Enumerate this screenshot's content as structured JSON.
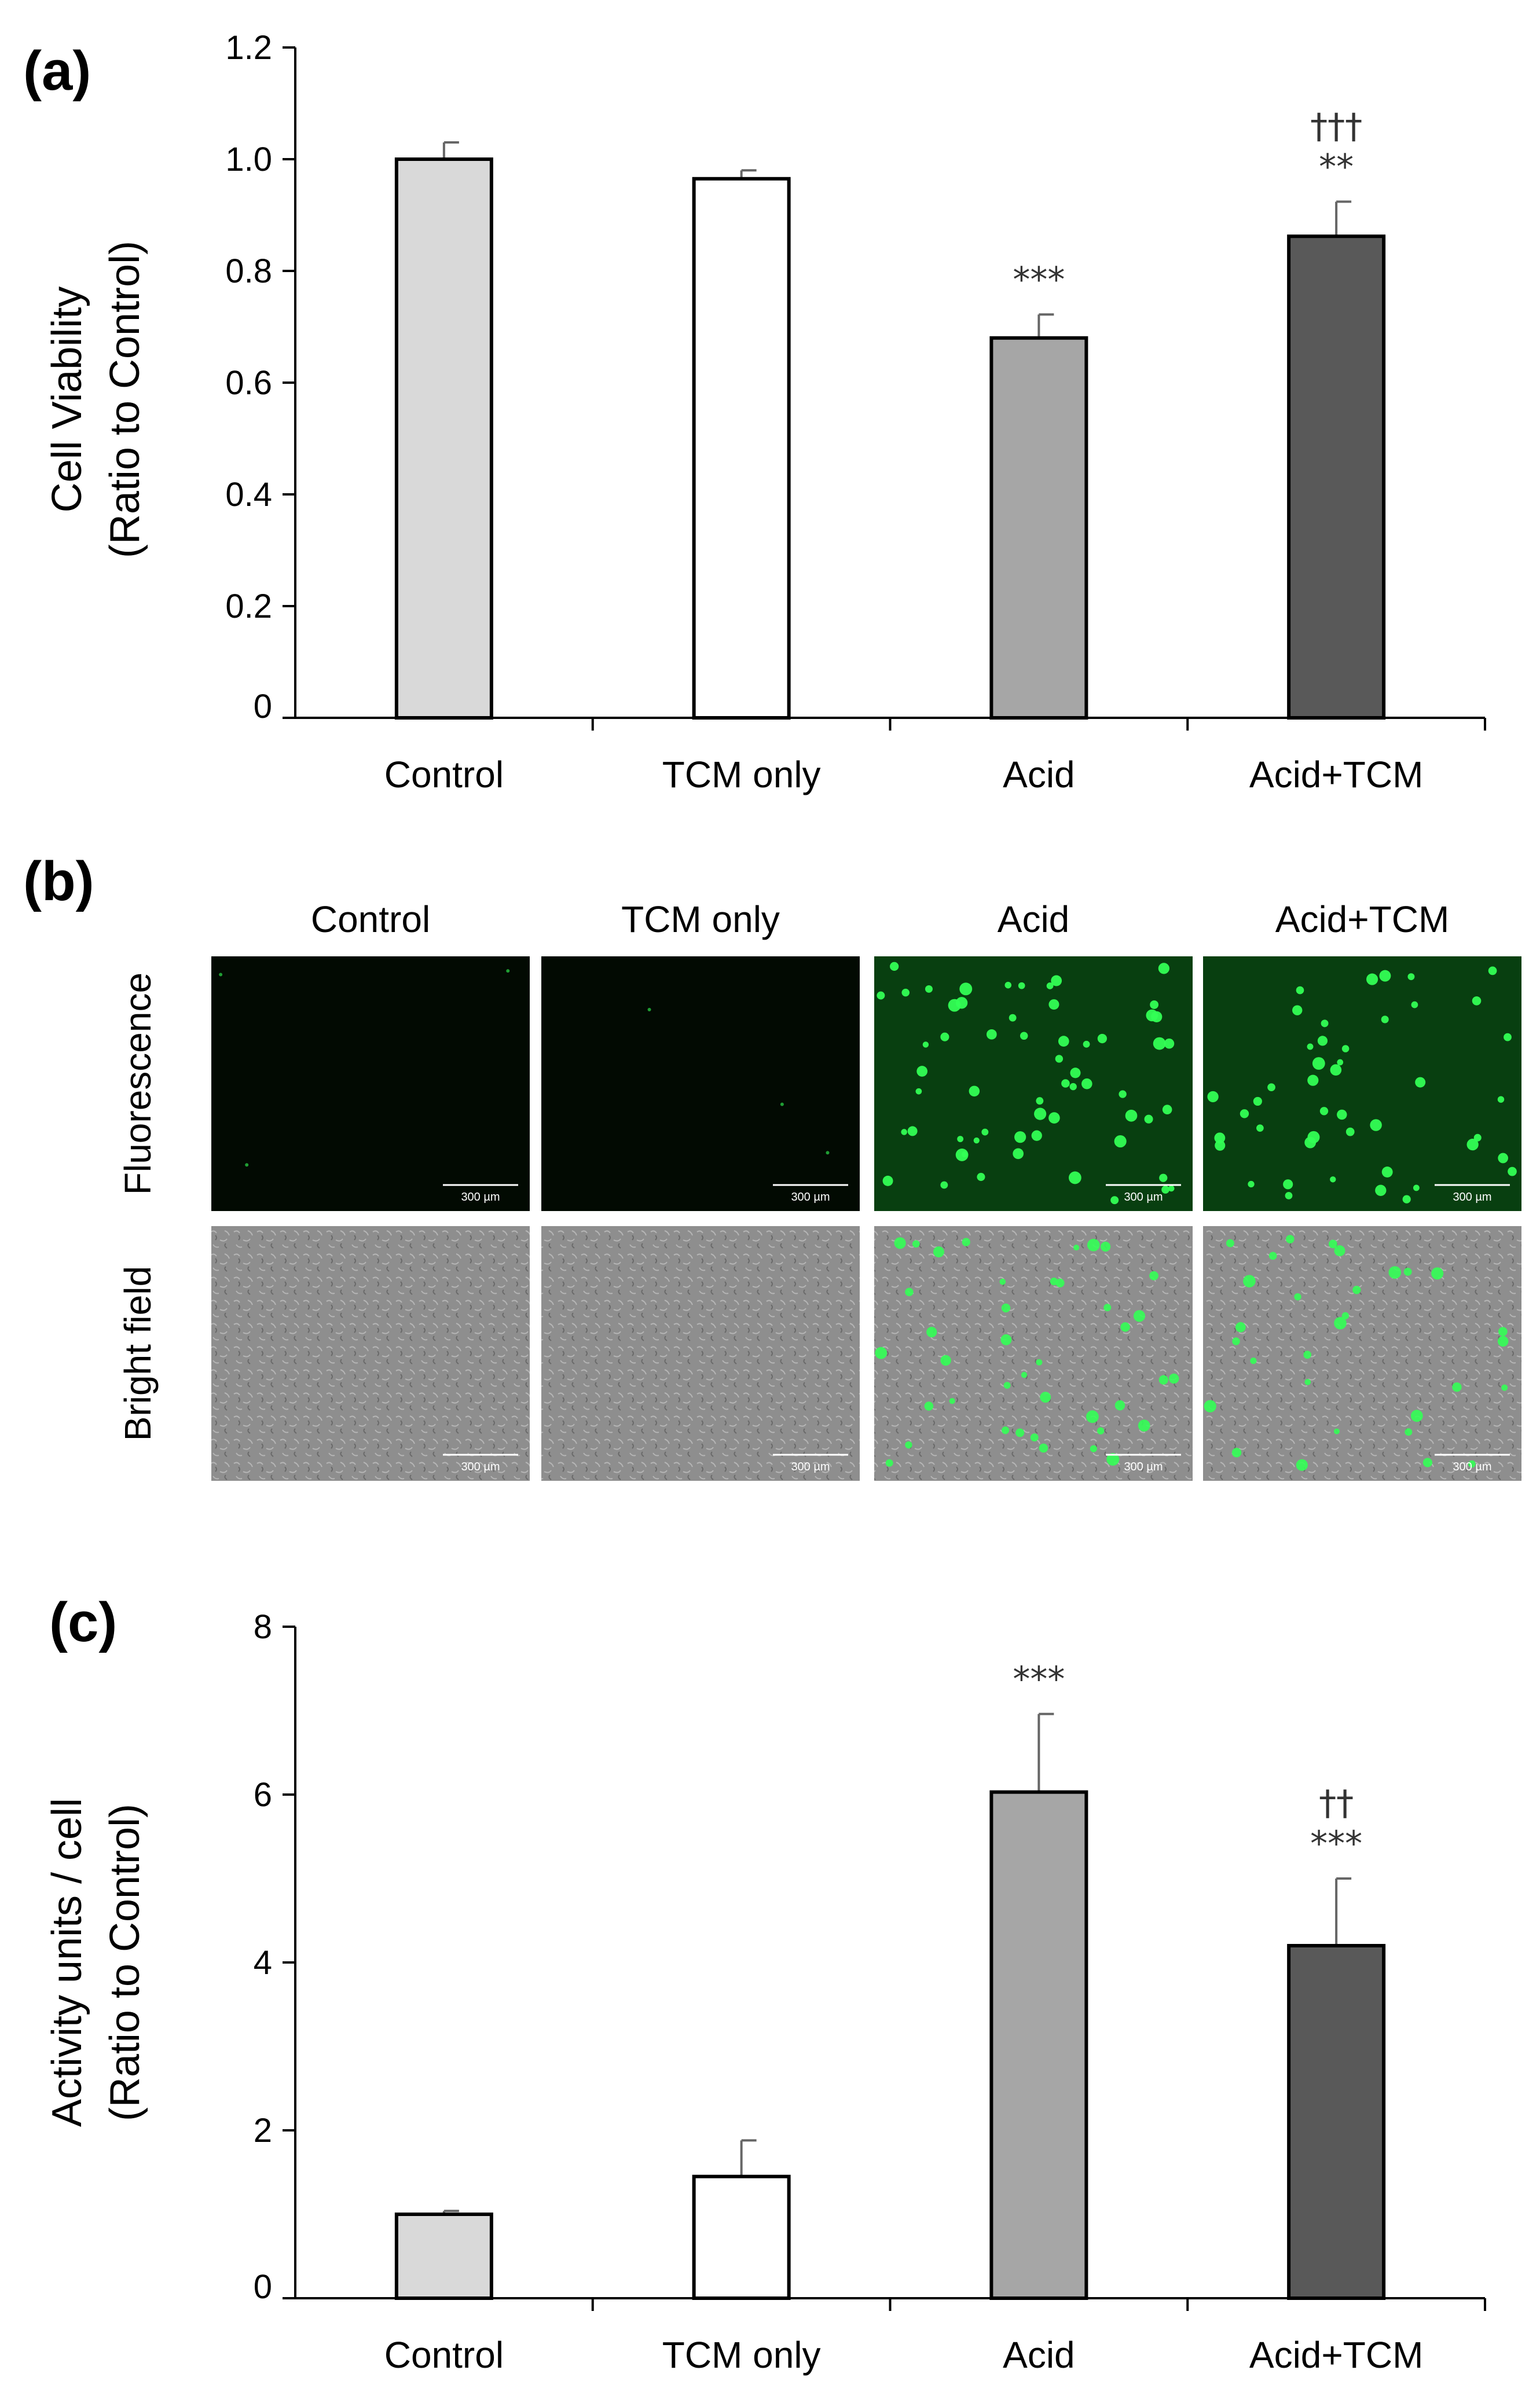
{
  "chart_data": [
    {
      "panel": "(a)",
      "type": "bar",
      "categories": [
        "Control",
        "TCM only",
        "Acid",
        "Acid+TCM"
      ],
      "values": [
        1.0,
        0.965,
        0.68,
        0.862
      ],
      "errors": [
        0.03,
        0.015,
        0.042,
        0.062
      ],
      "significance": [
        "",
        "",
        "***",
        "**"
      ],
      "significance2": [
        "",
        "",
        "",
        "†††"
      ],
      "bar_colors": [
        "#d9d9d9",
        "#ffffff",
        "#a6a6a6",
        "#595959"
      ],
      "ylabel_line1": "Cell Viability",
      "ylabel_line2": "(Ratio to Control)",
      "ylim": [
        0,
        1.2
      ],
      "yticks": [
        "0",
        "0.2",
        "0.4",
        "0.6",
        "0.8",
        "1.0",
        "1.2"
      ]
    },
    {
      "panel": "(c)",
      "type": "bar",
      "categories": [
        "Control",
        "TCM only",
        "Acid",
        "Acid+TCM"
      ],
      "values": [
        1.0,
        1.45,
        6.03,
        4.2
      ],
      "errors": [
        0.04,
        0.43,
        0.93,
        0.8
      ],
      "significance": [
        "",
        "",
        "***",
        "***"
      ],
      "significance2": [
        "",
        "",
        "",
        "††"
      ],
      "bar_colors": [
        "#d9d9d9",
        "#ffffff",
        "#a6a6a6",
        "#595959"
      ],
      "ylabel_line1": "Activity units / cell",
      "ylabel_line2": "(Ratio to Control)",
      "ylim": [
        0,
        8
      ],
      "yticks": [
        "0",
        "2",
        "4",
        "6",
        "8"
      ]
    }
  ],
  "images_panel": {
    "panel": "(b)",
    "columns": [
      "Control",
      "TCM only",
      "Acid",
      "Acid+TCM"
    ],
    "rows": [
      "Fluorescence",
      "Bright field"
    ],
    "scale_bar": "300 µm",
    "fluorescence_color": "#33ff55",
    "green_cell_counts_fluorescence": [
      3,
      3,
      60,
      45
    ],
    "green_cell_counts_brightfield": [
      0,
      0,
      40,
      30
    ]
  }
}
